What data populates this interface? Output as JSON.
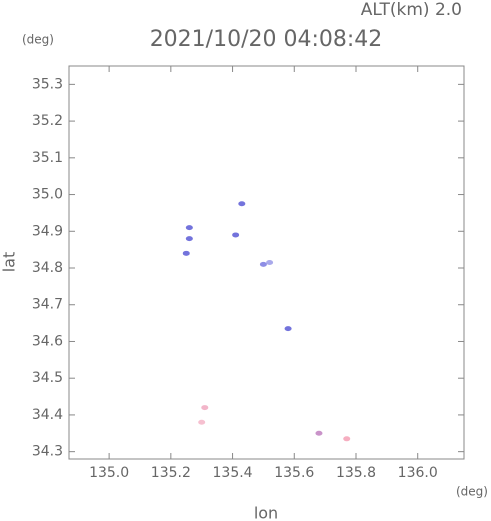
{
  "chart_data": {
    "type": "scatter",
    "title": "2021/10/20 04:08:42",
    "subtitle": "ALT(km) 2.0",
    "y_unit": "(deg)",
    "x_unit": "(deg)",
    "x_label": "lon",
    "y_label": "lat",
    "xlim": [
      134.87,
      136.15
    ],
    "ylim": [
      34.28,
      35.35
    ],
    "xticks": [
      {
        "value": 135,
        "label": "135.0"
      },
      135.2,
      135.4,
      135.6,
      135.8,
      {
        "value": 136,
        "label": "136.0"
      }
    ],
    "yticks": [
      34.3,
      34.4,
      34.5,
      34.6,
      34.7,
      34.8,
      34.9,
      {
        "value": 35,
        "label": "35.0"
      },
      35.1,
      35.2,
      35.3
    ],
    "x": [
      135.43,
      135.26,
      135.26,
      135.25,
      135.41,
      135.5,
      135.52,
      135.58,
      135.31,
      135.3,
      135.68,
      135.77
    ],
    "y": [
      34.975,
      34.91,
      34.88,
      34.84,
      34.89,
      34.81,
      34.815,
      34.635,
      34.42,
      34.38,
      34.35,
      34.335
    ],
    "colors": [
      "#5b5bd6",
      "#5b5bd6",
      "#5b5bd6",
      "#5b5bd6",
      "#5b5bd6",
      "#7a7ae0",
      "#9a9ae8",
      "#5b5bd6",
      "#f0a8c0",
      "#f5b5c8",
      "#c080c0",
      "#f5a0b5"
    ]
  }
}
